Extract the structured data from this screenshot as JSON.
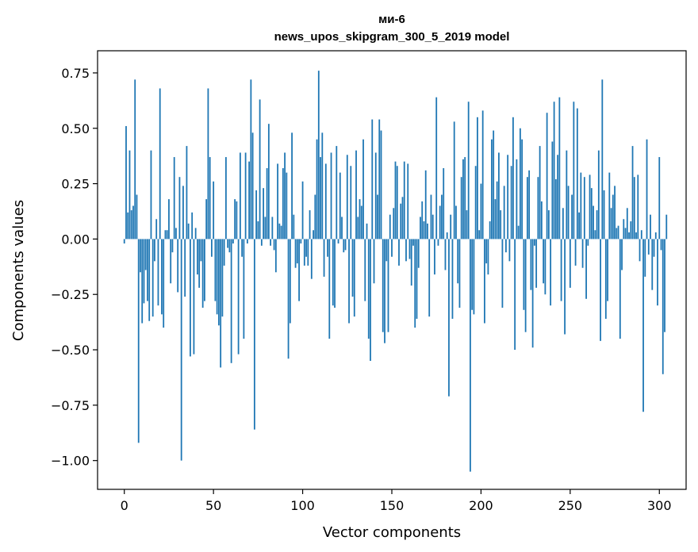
{
  "chart_data": {
    "type": "bar",
    "title": "ми-6",
    "subtitle": "news_upos_skipgram_300_5_2019 model",
    "xlabel": "Vector components",
    "ylabel": "Components values",
    "xlim": [
      -15,
      315
    ],
    "ylim": [
      -1.13,
      0.85
    ],
    "xticks": [
      0,
      50,
      100,
      150,
      200,
      250,
      300
    ],
    "xtick_labels": [
      "0",
      "50",
      "100",
      "150",
      "200",
      "250",
      "300"
    ],
    "yticks": [
      0.75,
      0.5,
      0.25,
      0.0,
      -0.25,
      -0.5,
      -0.75,
      -1.0
    ],
    "ytick_labels": [
      "0.75",
      "0.50",
      "0.25",
      "0.00",
      "−0.25",
      "−0.50",
      "−0.75",
      "−1.00"
    ],
    "bar_color": "#1f77b4",
    "grid": false,
    "values": [
      -0.02,
      0.51,
      0.12,
      0.4,
      0.13,
      0.15,
      0.72,
      0.2,
      -0.92,
      -0.15,
      -0.38,
      -0.29,
      -0.14,
      -0.28,
      -0.37,
      0.4,
      -0.35,
      -0.1,
      0.09,
      -0.3,
      0.68,
      -0.34,
      -0.4,
      0.04,
      0.04,
      0.18,
      -0.2,
      -0.06,
      0.37,
      0.05,
      -0.24,
      0.28,
      -1.0,
      0.24,
      -0.26,
      0.42,
      0.07,
      -0.53,
      0.12,
      -0.52,
      0.05,
      -0.16,
      -0.22,
      -0.1,
      -0.31,
      -0.28,
      0.18,
      0.68,
      0.37,
      -0.08,
      0.26,
      -0.28,
      -0.34,
      -0.39,
      -0.58,
      -0.35,
      -0.12,
      0.37,
      -0.04,
      -0.06,
      -0.56,
      -0.02,
      0.18,
      0.17,
      -0.52,
      0.39,
      -0.08,
      -0.45,
      0.39,
      -0.02,
      0.35,
      0.72,
      0.48,
      -0.86,
      0.22,
      0.08,
      0.63,
      -0.03,
      0.23,
      0.1,
      0.32,
      0.52,
      -0.03,
      0.1,
      -0.05,
      -0.15,
      0.34,
      0.07,
      0.06,
      0.32,
      0.39,
      0.3,
      -0.54,
      -0.38,
      0.48,
      0.11,
      -0.13,
      -0.11,
      -0.28,
      -0.02,
      0.26,
      -0.12,
      -0.08,
      -0.12,
      0.13,
      -0.18,
      0.04,
      0.2,
      0.45,
      0.76,
      0.37,
      0.48,
      -0.17,
      0.34,
      -0.08,
      -0.45,
      0.39,
      -0.3,
      -0.31,
      0.42,
      -0.02,
      0.3,
      0.1,
      -0.06,
      -0.05,
      0.38,
      -0.38,
      0.33,
      -0.26,
      -0.35,
      0.4,
      0.1,
      0.18,
      0.15,
      0.45,
      -0.28,
      0.07,
      -0.45,
      -0.55,
      0.54,
      -0.2,
      0.39,
      0.2,
      0.54,
      0.49,
      -0.42,
      -0.47,
      -0.1,
      -0.42,
      0.11,
      -0.08,
      0.14,
      0.35,
      0.33,
      -0.12,
      0.16,
      0.19,
      0.35,
      -0.1,
      0.34,
      -0.09,
      -0.21,
      -0.03,
      -0.4,
      -0.36,
      -0.13,
      0.1,
      0.17,
      0.08,
      0.31,
      0.07,
      -0.35,
      0.2,
      0.11,
      -0.16,
      0.64,
      -0.03,
      0.15,
      0.2,
      0.32,
      -0.14,
      0.03,
      -0.71,
      0.11,
      -0.36,
      0.53,
      0.15,
      -0.2,
      -0.31,
      0.28,
      0.36,
      0.37,
      0.13,
      0.62,
      -1.05,
      -0.32,
      -0.34,
      0.33,
      0.55,
      0.04,
      0.25,
      0.58,
      -0.38,
      -0.11,
      -0.16,
      0.08,
      0.45,
      0.49,
      0.18,
      0.26,
      0.39,
      0.13,
      -0.31,
      0.24,
      -0.06,
      0.38,
      -0.1,
      0.33,
      0.55,
      -0.5,
      0.36,
      0.06,
      0.5,
      0.45,
      -0.32,
      -0.42,
      0.28,
      0.31,
      -0.23,
      -0.49,
      -0.03,
      -0.22,
      0.28,
      0.42,
      0.17,
      -0.2,
      -0.25,
      0.57,
      0.13,
      -0.3,
      0.44,
      0.62,
      0.27,
      0.38,
      0.64,
      -0.28,
      0.14,
      -0.43,
      0.4,
      0.24,
      -0.22,
      0.2,
      0.62,
      -0.12,
      0.59,
      0.12,
      0.3,
      -0.13,
      0.28,
      -0.27,
      -0.03,
      0.29,
      0.23,
      0.15,
      0.04,
      0.13,
      0.4,
      -0.46,
      0.72,
      0.22,
      -0.36,
      -0.28,
      0.3,
      0.14,
      0.2,
      0.24,
      0.05,
      0.06,
      -0.45,
      -0.14,
      0.09,
      0.05,
      0.14,
      0.03,
      0.08,
      0.42,
      0.28,
      0.03,
      0.29,
      -0.1,
      0.04,
      -0.78,
      -0.17,
      0.45,
      -0.07,
      0.11,
      -0.23,
      -0.08,
      0.03,
      -0.3,
      0.37,
      -0.05,
      -0.61,
      -0.42,
      0.11
    ]
  }
}
